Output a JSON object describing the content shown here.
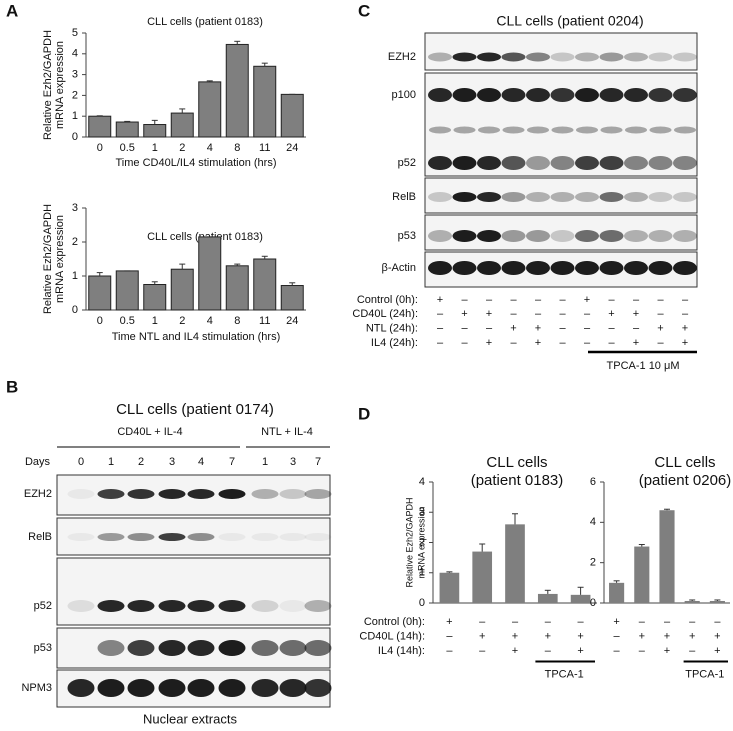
{
  "panel_letters": [
    "A",
    "B",
    "C",
    "D"
  ],
  "chart_data": [
    {
      "type": "bar",
      "title": "CLL cells (patient 0183)",
      "ylabel": [
        "Relative Ezh2/GAPDH",
        "mRNA expression"
      ],
      "xlabel": "Time CD40L/IL4 stimulation (hrs)",
      "categories": [
        "0",
        "0.5",
        "1",
        "2",
        "4",
        "8",
        "11",
        "24"
      ],
      "values": [
        1.0,
        0.72,
        0.6,
        1.15,
        2.65,
        4.45,
        3.4,
        2.05
      ],
      "errors": [
        0.02,
        0.03,
        0.2,
        0.2,
        0.05,
        0.15,
        0.15,
        0.0
      ],
      "color": "#7f7f7f",
      "ylim": [
        0,
        5
      ],
      "yticks": [
        0,
        1,
        2,
        3,
        4,
        5
      ]
    },
    {
      "type": "bar",
      "title": "CLL cells (patient 0183)",
      "ylabel": [
        "Relative Ezh2/GAPDH",
        "mRNA expression"
      ],
      "xlabel": "Time NTL and IL4 stimulation (hrs)",
      "categories": [
        "0",
        "0.5",
        "1",
        "2",
        "4",
        "8",
        "11",
        "24"
      ],
      "values": [
        1.0,
        1.15,
        0.75,
        1.2,
        2.15,
        1.3,
        1.5,
        0.72
      ],
      "errors": [
        0.1,
        0.0,
        0.08,
        0.15,
        0.0,
        0.05,
        0.08,
        0.08
      ],
      "color": "#7f7f7f",
      "ylim": [
        0,
        3
      ],
      "yticks": [
        0,
        1,
        2,
        3
      ]
    },
    {
      "type": "bar",
      "title": [
        "CLL cells",
        "(patient 0183)"
      ],
      "ylabel": [
        "Relative Ezh2/GAPDH",
        "mRNA expression"
      ],
      "values": [
        1.0,
        1.7,
        2.6,
        0.3,
        0.27
      ],
      "errors": [
        0.03,
        0.25,
        0.35,
        0.12,
        0.25
      ],
      "color": "#7f7f7f",
      "ylim": [
        0,
        4
      ],
      "yticks": [
        0,
        1,
        2,
        3,
        4
      ],
      "conditions": [
        {
          "label": "Control (0h):",
          "signs": [
            "+",
            "–",
            "–",
            "–",
            "–"
          ]
        },
        {
          "label": "CD40L (14h):",
          "signs": [
            "–",
            "+",
            "+",
            "+",
            "+"
          ]
        },
        {
          "label": "IL4 (14h):",
          "signs": [
            "–",
            "–",
            "+",
            "–",
            "+"
          ]
        }
      ],
      "bracket_label": "TPCA-1"
    },
    {
      "type": "bar",
      "title": [
        "CLL cells",
        "(patient 0206)"
      ],
      "values": [
        1.0,
        2.8,
        4.6,
        0.1,
        0.1
      ],
      "errors": [
        0.1,
        0.1,
        0.05,
        0.05,
        0.05
      ],
      "color": "#7f7f7f",
      "ylim": [
        0,
        6
      ],
      "yticks": [
        0,
        2,
        4,
        6
      ],
      "conditions": [
        {
          "signs": [
            "+",
            "–",
            "–",
            "–",
            "–"
          ]
        },
        {
          "signs": [
            "–",
            "+",
            "+",
            "+",
            "+"
          ]
        },
        {
          "signs": [
            "–",
            "–",
            "+",
            "–",
            "+"
          ]
        }
      ],
      "bracket_label": "TPCA-1"
    }
  ],
  "blot_b": {
    "title": "CLL cells (patient 0174)",
    "groups": [
      "CD40L + IL-4",
      "NTL + IL-4"
    ],
    "lane_header": "Days",
    "lanes": [
      "0",
      "1",
      "2",
      "3",
      "4",
      "7",
      "1",
      "3",
      "7"
    ],
    "rows": [
      "EZH2",
      "RelB",
      "p52",
      "p53",
      "NPM3"
    ],
    "footer": "Nuclear extracts"
  },
  "blot_c": {
    "title": "CLL cells (patient 0204)",
    "rows": [
      "EZH2",
      "p100",
      "p52",
      "RelB",
      "p53",
      "β-Actin"
    ],
    "conditions": [
      {
        "label": "Control (0h):",
        "signs": [
          "+",
          "–",
          "–",
          "–",
          "–",
          "–",
          "+",
          "–",
          "–",
          "–",
          "–"
        ]
      },
      {
        "label": "CD40L (24h):",
        "signs": [
          "–",
          "+",
          "+",
          "–",
          "–",
          "–",
          "–",
          "+",
          "+",
          "–",
          "–"
        ]
      },
      {
        "label": "NTL (24h):",
        "signs": [
          "–",
          "–",
          "–",
          "+",
          "+",
          "–",
          "–",
          "–",
          "–",
          "+",
          "+"
        ]
      },
      {
        "label": "IL4 (24h):",
        "signs": [
          "–",
          "–",
          "+",
          "–",
          "+",
          "–",
          "–",
          "–",
          "+",
          "–",
          "+"
        ]
      }
    ],
    "bracket_label": "TPCA-1 10 μM"
  }
}
